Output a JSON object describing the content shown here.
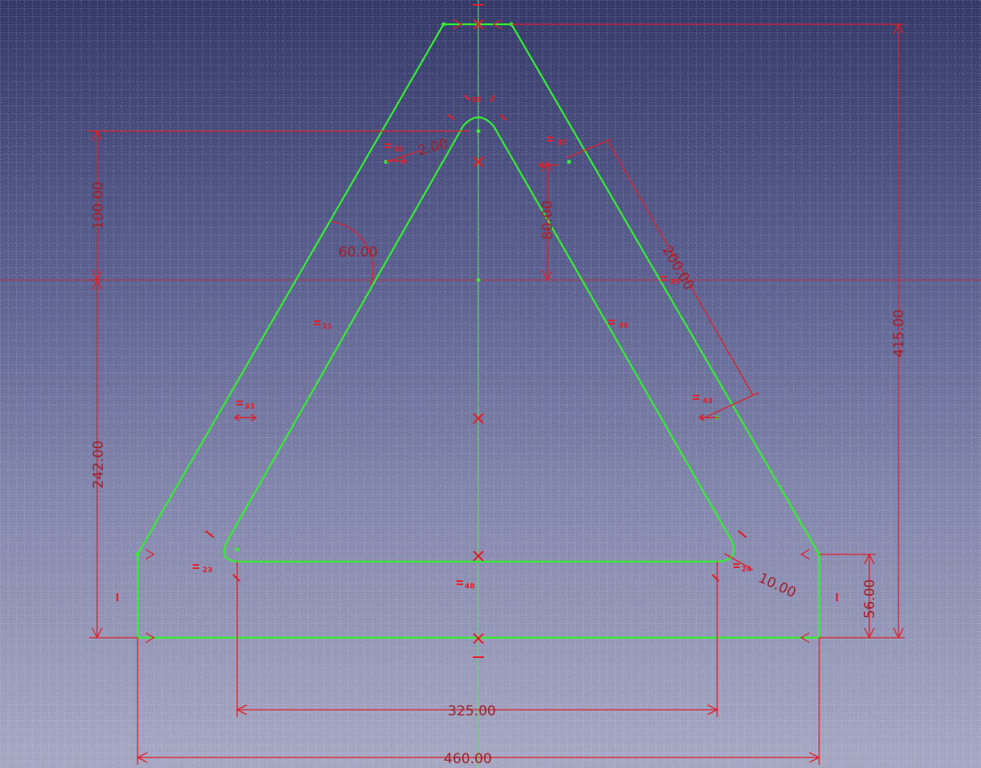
{
  "dimensions": {
    "d100": "100.00",
    "d80": "80.00",
    "d60": "60.00",
    "d2": "2.00",
    "d200": "200.00",
    "d415": "415.00",
    "d242": "242.00",
    "d56": "56.00",
    "d10": "10.00",
    "d325": "325.00",
    "d460": "460.00"
  },
  "constraint_tags": {
    "c21": "21",
    "c32": "32",
    "c33": "33",
    "c23": "23",
    "c48": "48",
    "c24": "24",
    "c43": "43",
    "c46": "46",
    "c35": "35",
    "c37": "37",
    "c38": "38"
  },
  "colors": {
    "geometry": "#33ee33",
    "constraint": "#e0202a",
    "dimension_text": "#a0202a",
    "axis": "#55dd55",
    "grid": "#ffffff"
  }
}
